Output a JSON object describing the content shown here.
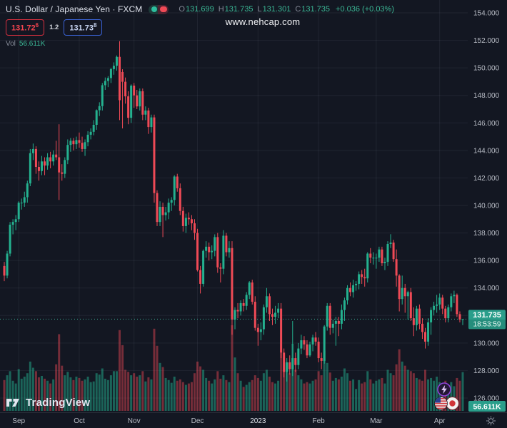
{
  "header": {
    "symbol_title": "U.S. Dollar / Japanese Yen · FXCM",
    "ohlc_items": [
      {
        "k": "O",
        "v": "131.699"
      },
      {
        "k": "H",
        "v": "131.735"
      },
      {
        "k": "L",
        "v": "131.301"
      },
      {
        "k": "C",
        "v": "131.735"
      }
    ],
    "change": "+0.036 (+0.03%)",
    "bid": "131.72",
    "bid_sup": "6",
    "spread": "1.2",
    "ask": "131.73",
    "ask_sup": "8",
    "vol_label": "Vol",
    "vol_value": "56.611K"
  },
  "watermark": "www.nehcap.com",
  "logo_text": "TradingView",
  "icons": {
    "status_toggle": "realtime-delayed-toggle",
    "lightning": "alerts-lightning-bolt",
    "flags": "usd-jpy-pair-flags",
    "gear": "time-axis-settings-gear"
  },
  "colors": {
    "bg": "#131722",
    "grid": "rgba(147,158,178,0.10)",
    "axis_text": "#b9bdc6",
    "axis_text_bright": "#dfe3ea",
    "up": "#24b18f",
    "down": "#ef4a56",
    "vol_up": "rgba(36,177,143,0.50)",
    "vol_down": "rgba(239,74,86,0.45)",
    "price_line": "rgba(62,176,152,0.95)",
    "badge": "#2a9e8b",
    "border": "#2a2e39"
  },
  "price_scale": {
    "price_badge": {
      "price": "131.735",
      "countdown": "18:53:59"
    },
    "volume_badge": "56.611K"
  },
  "chart_data": {
    "type": "candlestick_with_volume",
    "title": "U.S. Dollar / Japanese Yen · FXCM, Daily",
    "symbol": "USDJPY",
    "last_price": 131.735,
    "price_line": 131.735,
    "y_axis": {
      "min": 125.0,
      "max": 155.0,
      "gridlines": [
        154,
        152,
        150,
        148,
        146,
        144,
        142,
        140,
        138,
        136,
        134,
        132,
        130,
        128,
        126
      ]
    },
    "months": [
      {
        "label": "Sep",
        "index": 5
      },
      {
        "label": "Oct",
        "index": 26
      },
      {
        "label": "Nov",
        "index": 45
      },
      {
        "label": "Dec",
        "index": 67
      },
      {
        "label": "2023",
        "index": 88,
        "emphasis": true
      },
      {
        "label": "Feb",
        "index": 109
      },
      {
        "label": "Mar",
        "index": 129
      },
      {
        "label": "Apr",
        "index": 151
      }
    ],
    "candles_format": [
      "open",
      "high",
      "low",
      "close",
      "volume_k"
    ],
    "candles": [
      [
        135.6,
        135.9,
        134.5,
        134.9,
        45
      ],
      [
        134.9,
        136.7,
        134.7,
        136.5,
        52
      ],
      [
        136.5,
        138.8,
        136.3,
        138.6,
        58
      ],
      [
        138.6,
        139.0,
        137.9,
        138.8,
        44
      ],
      [
        138.8,
        139.3,
        138.2,
        139.0,
        40
      ],
      [
        139.0,
        140.3,
        138.8,
        140.2,
        61
      ],
      [
        140.2,
        140.5,
        139.7,
        140.2,
        47
      ],
      [
        140.2,
        141.0,
        139.9,
        140.6,
        50
      ],
      [
        140.6,
        141.8,
        140.2,
        141.6,
        55
      ],
      [
        141.6,
        144.1,
        141.4,
        143.8,
        72
      ],
      [
        143.8,
        144.5,
        143.3,
        144.1,
        63
      ],
      [
        144.1,
        144.3,
        142.3,
        142.8,
        58
      ],
      [
        142.8,
        143.2,
        141.8,
        142.5,
        49
      ],
      [
        142.5,
        143.6,
        142.2,
        143.2,
        51
      ],
      [
        143.2,
        143.5,
        142.2,
        142.9,
        47
      ],
      [
        142.9,
        143.8,
        142.6,
        143.5,
        44
      ],
      [
        143.5,
        143.9,
        142.7,
        143.2,
        40
      ],
      [
        143.2,
        144.0,
        142.9,
        143.7,
        46
      ],
      [
        143.7,
        144.7,
        143.3,
        143.5,
        68
      ],
      [
        143.5,
        145.9,
        140.4,
        142.4,
        112
      ],
      [
        142.4,
        143.0,
        141.8,
        142.3,
        66
      ],
      [
        142.3,
        143.5,
        142.0,
        143.3,
        52
      ],
      [
        143.3,
        144.8,
        143.0,
        144.4,
        57
      ],
      [
        144.4,
        144.9,
        143.9,
        144.7,
        49
      ],
      [
        144.7,
        144.9,
        144.0,
        144.45,
        45
      ],
      [
        144.45,
        145.0,
        144.1,
        144.75,
        50
      ],
      [
        144.75,
        145.3,
        144.2,
        144.55,
        48
      ],
      [
        144.55,
        145.0,
        143.9,
        144.1,
        44
      ],
      [
        144.1,
        144.8,
        143.6,
        144.6,
        46
      ],
      [
        144.6,
        145.4,
        144.3,
        145.14,
        50
      ],
      [
        145.14,
        145.6,
        144.8,
        145.35,
        42
      ],
      [
        145.35,
        146.2,
        145.1,
        145.86,
        43
      ],
      [
        145.86,
        146.98,
        145.5,
        146.92,
        55
      ],
      [
        146.92,
        147.5,
        146.5,
        147.22,
        53
      ],
      [
        147.22,
        148.9,
        146.9,
        148.74,
        62
      ],
      [
        148.74,
        149.3,
        148.4,
        149.05,
        47
      ],
      [
        149.05,
        149.4,
        148.6,
        149.26,
        45
      ],
      [
        149.26,
        150.0,
        148.9,
        149.91,
        52
      ],
      [
        149.91,
        150.4,
        149.5,
        150.15,
        58
      ],
      [
        150.15,
        150.9,
        149.8,
        150.8,
        58
      ],
      [
        150.8,
        151.94,
        146.2,
        147.65,
        118
      ],
      [
        149.7,
        149.9,
        145.6,
        148.99,
        96
      ],
      [
        148.99,
        149.3,
        147.4,
        147.93,
        60
      ],
      [
        147.93,
        148.3,
        145.9,
        146.37,
        57
      ],
      [
        146.37,
        148.8,
        146.0,
        148.71,
        52
      ],
      [
        148.71,
        148.9,
        147.1,
        148.0,
        55
      ],
      [
        148.0,
        148.4,
        147.0,
        147.2,
        50
      ],
      [
        147.2,
        148.5,
        146.9,
        148.3,
        52
      ],
      [
        148.3,
        148.5,
        146.2,
        146.6,
        58
      ],
      [
        146.6,
        147.2,
        146.2,
        146.9,
        43
      ],
      [
        146.9,
        147.1,
        145.2,
        145.7,
        49
      ],
      [
        145.7,
        146.6,
        145.3,
        146.4,
        46
      ],
      [
        146.4,
        146.6,
        140.2,
        140.9,
        120
      ],
      [
        140.9,
        141.1,
        138.5,
        138.8,
        95
      ],
      [
        138.8,
        140.3,
        138.5,
        139.9,
        70
      ],
      [
        139.9,
        140.2,
        137.7,
        139.3,
        64
      ],
      [
        139.3,
        139.9,
        138.9,
        139.5,
        48
      ],
      [
        139.5,
        140.5,
        139.0,
        140.2,
        45
      ],
      [
        140.2,
        140.6,
        139.6,
        140.4,
        41
      ],
      [
        140.4,
        142.2,
        140.0,
        142.1,
        50
      ],
      [
        142.1,
        142.3,
        141.0,
        141.25,
        44
      ],
      [
        141.25,
        141.6,
        139.3,
        139.6,
        46
      ],
      [
        139.6,
        139.9,
        138.1,
        138.5,
        42
      ],
      [
        138.5,
        139.4,
        138.0,
        139.1,
        38
      ],
      [
        139.1,
        139.5,
        138.6,
        139.0,
        40
      ],
      [
        139.0,
        139.3,
        138.2,
        138.7,
        42
      ],
      [
        138.7,
        139.0,
        137.5,
        138.0,
        55
      ],
      [
        138.0,
        138.3,
        135.2,
        135.3,
        72
      ],
      [
        135.3,
        135.6,
        133.6,
        134.3,
        65
      ],
      [
        134.3,
        136.8,
        134.1,
        136.7,
        60
      ],
      [
        136.7,
        137.4,
        136.2,
        137.0,
        48
      ],
      [
        137.0,
        137.3,
        136.0,
        136.6,
        44
      ],
      [
        136.6,
        137.1,
        136.1,
        136.7,
        40
      ],
      [
        136.7,
        137.9,
        136.3,
        137.7,
        46
      ],
      [
        137.7,
        138.0,
        135.1,
        135.5,
        58
      ],
      [
        135.5,
        135.8,
        134.4,
        135.4,
        47
      ],
      [
        135.4,
        138.2,
        135.0,
        137.8,
        52
      ],
      [
        137.8,
        138.0,
        136.3,
        136.6,
        45
      ],
      [
        136.6,
        137.4,
        136.2,
        136.9,
        42
      ],
      [
        136.9,
        137.4,
        130.6,
        131.7,
        125
      ],
      [
        131.7,
        132.6,
        131.0,
        132.4,
        78
      ],
      [
        132.4,
        132.9,
        131.8,
        132.3,
        55
      ],
      [
        132.3,
        133.1,
        132.0,
        132.9,
        44
      ],
      [
        132.9,
        133.2,
        132.3,
        132.7,
        35
      ],
      [
        132.7,
        133.7,
        132.4,
        133.5,
        38
      ],
      [
        133.5,
        134.5,
        133.2,
        134.4,
        42
      ],
      [
        134.4,
        134.6,
        132.8,
        133.0,
        45
      ],
      [
        133.0,
        133.4,
        130.9,
        131.1,
        52
      ],
      [
        131.1,
        131.4,
        129.8,
        130.8,
        48
      ],
      [
        130.8,
        131.5,
        130.2,
        131.0,
        44
      ],
      [
        131.0,
        132.8,
        130.6,
        132.6,
        55
      ],
      [
        132.6,
        134.0,
        132.2,
        133.4,
        60
      ],
      [
        133.4,
        133.6,
        131.6,
        132.1,
        50
      ],
      [
        132.1,
        132.5,
        131.3,
        131.9,
        42
      ],
      [
        131.9,
        132.7,
        131.4,
        132.2,
        40
      ],
      [
        132.2,
        132.9,
        131.8,
        132.5,
        44
      ],
      [
        132.5,
        132.9,
        128.9,
        129.3,
        85
      ],
      [
        129.3,
        129.6,
        127.5,
        127.9,
        78
      ],
      [
        127.9,
        128.9,
        127.2,
        128.6,
        70
      ],
      [
        128.6,
        129.1,
        127.7,
        128.1,
        55
      ],
      [
        128.1,
        131.6,
        127.6,
        128.9,
        98
      ],
      [
        128.9,
        129.3,
        127.9,
        128.4,
        60
      ],
      [
        128.4,
        130.0,
        128.1,
        129.6,
        52
      ],
      [
        129.6,
        130.6,
        129.2,
        130.2,
        46
      ],
      [
        130.2,
        130.5,
        129.5,
        129.9,
        40
      ],
      [
        129.9,
        130.2,
        128.9,
        129.1,
        42
      ],
      [
        129.1,
        130.1,
        129.0,
        129.9,
        40
      ],
      [
        129.9,
        130.6,
        129.4,
        130.4,
        44
      ],
      [
        130.4,
        130.8,
        129.8,
        130.1,
        46
      ],
      [
        130.1,
        130.4,
        128.6,
        128.9,
        58
      ],
      [
        128.9,
        129.3,
        128.1,
        128.7,
        52
      ],
      [
        128.7,
        131.3,
        128.5,
        131.2,
        88
      ],
      [
        131.2,
        132.9,
        130.9,
        132.7,
        70
      ],
      [
        132.7,
        132.9,
        130.6,
        131.1,
        56
      ],
      [
        131.1,
        131.7,
        130.7,
        131.4,
        44
      ],
      [
        131.4,
        131.9,
        129.8,
        131.6,
        48
      ],
      [
        131.6,
        131.9,
        130.5,
        131.4,
        46
      ],
      [
        131.4,
        132.8,
        131.0,
        132.4,
        50
      ],
      [
        132.4,
        133.3,
        131.6,
        133.1,
        62
      ],
      [
        133.1,
        134.2,
        132.8,
        134.0,
        55
      ],
      [
        134.0,
        134.4,
        133.4,
        133.7,
        44
      ],
      [
        133.7,
        134.6,
        133.3,
        134.2,
        46
      ],
      [
        134.2,
        134.5,
        133.8,
        134.3,
        32
      ],
      [
        134.3,
        135.2,
        133.9,
        135.0,
        45
      ],
      [
        135.0,
        135.3,
        134.3,
        134.8,
        40
      ],
      [
        134.8,
        135.4,
        134.1,
        134.7,
        42
      ],
      [
        134.7,
        136.6,
        134.4,
        136.5,
        58
      ],
      [
        136.5,
        136.9,
        135.8,
        136.2,
        46
      ],
      [
        136.2,
        136.6,
        135.7,
        136.2,
        40
      ],
      [
        136.2,
        136.5,
        135.4,
        136.2,
        44
      ],
      [
        136.2,
        137.0,
        135.9,
        136.8,
        46
      ],
      [
        136.8,
        137.0,
        135.6,
        135.8,
        48
      ],
      [
        135.8,
        136.2,
        135.3,
        135.9,
        40
      ],
      [
        135.9,
        137.4,
        135.6,
        137.2,
        60
      ],
      [
        137.2,
        137.91,
        136.9,
        137.3,
        55
      ],
      [
        137.3,
        137.5,
        135.9,
        136.1,
        52
      ],
      [
        136.1,
        136.8,
        134.1,
        134.9,
        68
      ],
      [
        134.9,
        135.0,
        132.3,
        133.2,
        90
      ],
      [
        133.2,
        134.9,
        132.8,
        134.0,
        72
      ],
      [
        134.0,
        134.3,
        132.2,
        133.4,
        66
      ],
      [
        133.4,
        133.8,
        131.7,
        133.7,
        60
      ],
      [
        133.7,
        134.0,
        131.6,
        131.8,
        58
      ],
      [
        131.8,
        132.6,
        130.5,
        131.3,
        55
      ],
      [
        131.3,
        132.7,
        130.9,
        132.5,
        48
      ],
      [
        132.5,
        132.8,
        131.0,
        131.4,
        46
      ],
      [
        131.4,
        131.8,
        130.3,
        130.8,
        44
      ],
      [
        130.8,
        131.1,
        129.6,
        130.1,
        60
      ],
      [
        130.1,
        131.8,
        129.8,
        131.5,
        46
      ],
      [
        131.5,
        132.6,
        130.6,
        132.4,
        48
      ],
      [
        132.4,
        133.0,
        132.0,
        132.7,
        44
      ],
      [
        132.7,
        133.5,
        132.2,
        132.8,
        50
      ],
      [
        132.8,
        133.6,
        132.4,
        133.3,
        42
      ],
      [
        133.3,
        133.5,
        132.1,
        132.5,
        40
      ],
      [
        132.5,
        132.7,
        131.5,
        131.8,
        44
      ],
      [
        131.8,
        132.8,
        131.5,
        132.6,
        38
      ],
      [
        132.6,
        133.6,
        132.3,
        133.4,
        42
      ],
      [
        133.4,
        133.8,
        132.9,
        133.5,
        36
      ],
      [
        133.5,
        133.6,
        131.9,
        132.1,
        48
      ],
      [
        132.1,
        132.3,
        131.5,
        131.699,
        44
      ],
      [
        131.699,
        131.735,
        131.301,
        131.735,
        56.611
      ]
    ]
  }
}
